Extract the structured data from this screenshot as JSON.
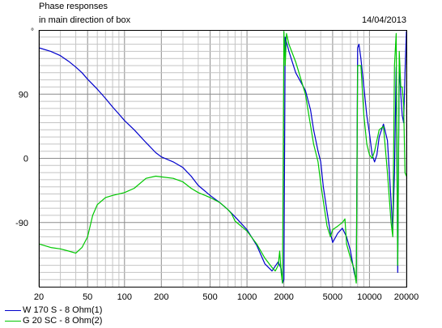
{
  "header": {
    "title_line1": "Phase responses",
    "title_line2": "in main direction of box",
    "date": "14/04/2013"
  },
  "chart_data": {
    "type": "line",
    "x_scale": "log",
    "xlim": [
      20,
      20000
    ],
    "ylim": [
      -180,
      180
    ],
    "y_unit_label": "°",
    "grid": true,
    "x_ticks": [
      20,
      50,
      100,
      200,
      500,
      1000,
      2000,
      5000,
      10000,
      20000
    ],
    "y_ticks": [
      90,
      0,
      -90
    ],
    "legend_placement": "bottom-left",
    "series": [
      {
        "name": "W 170 S - 8 Ohm(1)",
        "color": "#0000cc",
        "points": [
          [
            20,
            155
          ],
          [
            25,
            150
          ],
          [
            30,
            144
          ],
          [
            35,
            136
          ],
          [
            40,
            128
          ],
          [
            45,
            120
          ],
          [
            50,
            111
          ],
          [
            60,
            97
          ],
          [
            70,
            84
          ],
          [
            80,
            72
          ],
          [
            90,
            62
          ],
          [
            100,
            53
          ],
          [
            120,
            40
          ],
          [
            150,
            22
          ],
          [
            180,
            8
          ],
          [
            200,
            2
          ],
          [
            250,
            -5
          ],
          [
            300,
            -13
          ],
          [
            350,
            -25
          ],
          [
            400,
            -38
          ],
          [
            500,
            -52
          ],
          [
            600,
            -62
          ],
          [
            700,
            -72
          ],
          [
            800,
            -82
          ],
          [
            1000,
            -100
          ],
          [
            1200,
            -122
          ],
          [
            1400,
            -148
          ],
          [
            1600,
            -158
          ],
          [
            1800,
            -145
          ],
          [
            1900,
            -155
          ],
          [
            1950,
            -175
          ],
          [
            2000,
            -170
          ],
          [
            2050,
            170
          ],
          [
            2200,
            150
          ],
          [
            2500,
            120
          ],
          [
            3000,
            95
          ],
          [
            3300,
            68
          ],
          [
            3500,
            40
          ],
          [
            3800,
            10
          ],
          [
            4000,
            -5
          ],
          [
            4200,
            -40
          ],
          [
            4500,
            -75
          ],
          [
            4800,
            -105
          ],
          [
            5000,
            -118
          ],
          [
            5500,
            -105
          ],
          [
            6000,
            -98
          ],
          [
            6500,
            -110
          ],
          [
            7000,
            -130
          ],
          [
            7500,
            -160
          ],
          [
            7800,
            -172
          ],
          [
            8000,
            155
          ],
          [
            8200,
            160
          ],
          [
            8500,
            140
          ],
          [
            9000,
            100
          ],
          [
            9500,
            60
          ],
          [
            10000,
            35
          ],
          [
            10500,
            5
          ],
          [
            11000,
            -5
          ],
          [
            11500,
            5
          ],
          [
            12000,
            30
          ],
          [
            13000,
            48
          ],
          [
            14000,
            25
          ],
          [
            15000,
            -60
          ],
          [
            15500,
            -100
          ],
          [
            16000,
            -20
          ],
          [
            16500,
            128
          ],
          [
            17000,
            -160
          ],
          [
            17500,
            130
          ],
          [
            18000,
            90
          ],
          [
            18500,
            60
          ],
          [
            19000,
            50
          ],
          [
            19500,
            120
          ],
          [
            20000,
            178
          ]
        ]
      },
      {
        "name": "G 20 SC - 8 Ohm(2)",
        "color": "#00c800",
        "points": [
          [
            20,
            -120
          ],
          [
            25,
            -125
          ],
          [
            30,
            -127
          ],
          [
            35,
            -130
          ],
          [
            40,
            -133
          ],
          [
            45,
            -125
          ],
          [
            50,
            -110
          ],
          [
            55,
            -80
          ],
          [
            60,
            -65
          ],
          [
            70,
            -55
          ],
          [
            80,
            -52
          ],
          [
            100,
            -48
          ],
          [
            120,
            -42
          ],
          [
            150,
            -28
          ],
          [
            180,
            -25
          ],
          [
            200,
            -26
          ],
          [
            250,
            -28
          ],
          [
            300,
            -33
          ],
          [
            350,
            -42
          ],
          [
            400,
            -48
          ],
          [
            500,
            -55
          ],
          [
            600,
            -62
          ],
          [
            700,
            -72
          ],
          [
            750,
            -78
          ],
          [
            800,
            -88
          ],
          [
            1000,
            -102
          ],
          [
            1200,
            -120
          ],
          [
            1400,
            -140
          ],
          [
            1600,
            -153
          ],
          [
            1700,
            -158
          ],
          [
            1800,
            -150
          ],
          [
            1850,
            -130
          ],
          [
            1900,
            -160
          ],
          [
            1950,
            -175
          ],
          [
            2000,
            178
          ],
          [
            2050,
            130
          ],
          [
            2100,
            175
          ],
          [
            2200,
            160
          ],
          [
            2500,
            135
          ],
          [
            3000,
            90
          ],
          [
            3200,
            60
          ],
          [
            3500,
            20
          ],
          [
            3800,
            -5
          ],
          [
            4000,
            -35
          ],
          [
            4200,
            -60
          ],
          [
            4500,
            -95
          ],
          [
            4800,
            -110
          ],
          [
            5000,
            -100
          ],
          [
            5500,
            -95
          ],
          [
            6000,
            -90
          ],
          [
            6300,
            -85
          ],
          [
            6500,
            -120
          ],
          [
            7000,
            -140
          ],
          [
            7500,
            -155
          ],
          [
            7800,
            -175
          ],
          [
            8000,
            130
          ],
          [
            8500,
            130
          ],
          [
            9000,
            60
          ],
          [
            9500,
            20
          ],
          [
            10000,
            5
          ],
          [
            10500,
            0
          ],
          [
            11000,
            10
          ],
          [
            12000,
            40
          ],
          [
            13000,
            45
          ],
          [
            14000,
            -20
          ],
          [
            15000,
            -90
          ],
          [
            15500,
            -110
          ],
          [
            16000,
            130
          ],
          [
            16500,
            175
          ],
          [
            17000,
            -150
          ],
          [
            17500,
            150
          ],
          [
            18000,
            100
          ],
          [
            18500,
            100
          ],
          [
            19000,
            75
          ],
          [
            19500,
            -20
          ],
          [
            20000,
            -25
          ]
        ]
      }
    ]
  }
}
